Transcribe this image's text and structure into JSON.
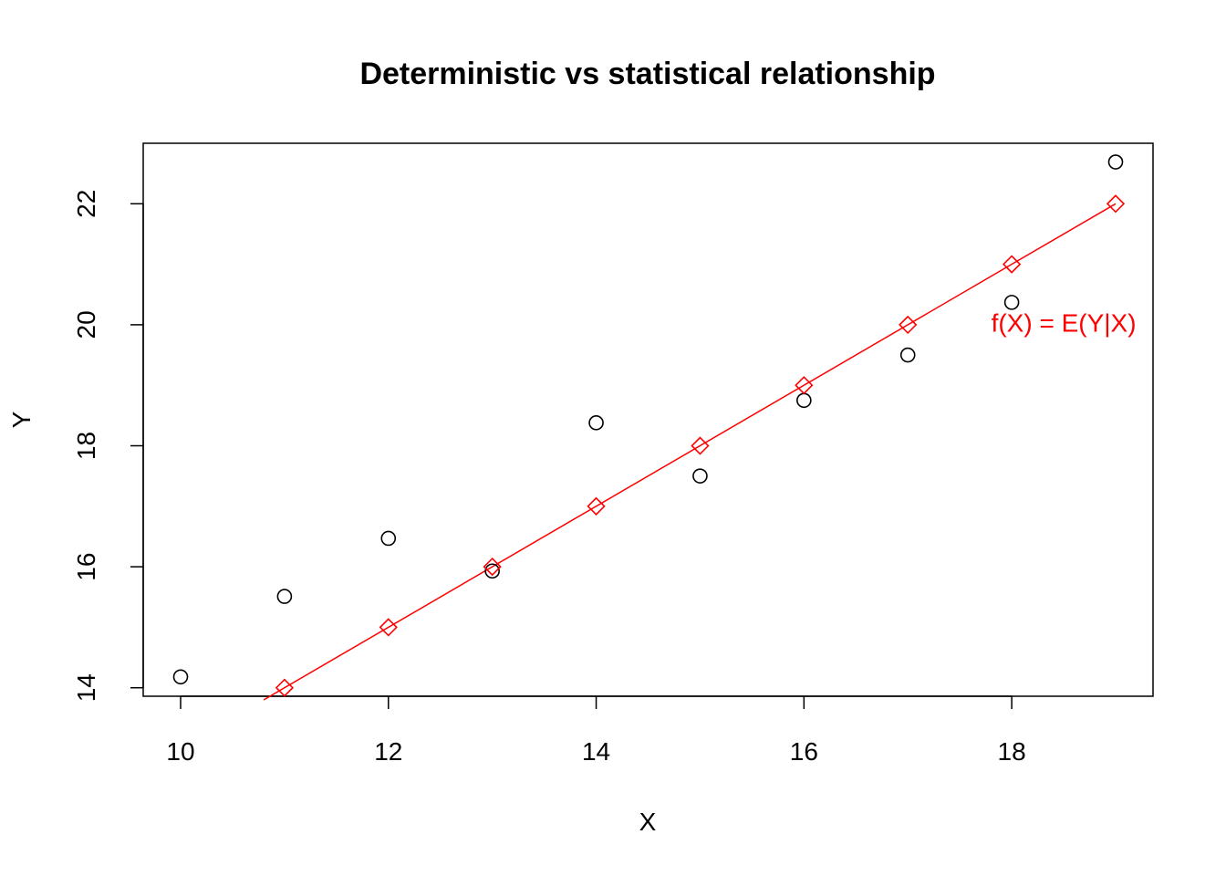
{
  "chart_data": {
    "type": "scatter",
    "title": "Deterministic vs statistical relationship",
    "xlabel": "X",
    "ylabel": "Y",
    "xlim": [
      9.64,
      19.36
    ],
    "ylim": [
      13.86,
      23.0
    ],
    "x_ticks": [
      10,
      12,
      14,
      16,
      18
    ],
    "y_ticks": [
      14,
      16,
      18,
      20,
      22
    ],
    "grid": false,
    "colors": {
      "observed": "#000000",
      "fitted": "#ff0000"
    },
    "observed_points": {
      "x": [
        10,
        11,
        12,
        13,
        14,
        15,
        16,
        17,
        18,
        19
      ],
      "y": [
        14.18,
        15.51,
        16.47,
        15.93,
        18.38,
        17.5,
        18.75,
        19.5,
        20.37,
        22.69
      ]
    },
    "fitted_points": {
      "x": [
        11,
        12,
        13,
        14,
        15,
        16,
        17,
        18,
        19
      ],
      "y": [
        14,
        15,
        16,
        17,
        18,
        19,
        20,
        21,
        22
      ]
    },
    "line": {
      "intercept": 3,
      "slope": 1,
      "x_range": [
        10.8,
        19
      ]
    },
    "annotation": {
      "text": "f(X) = E(Y|X)",
      "x": 18.5,
      "y": 20
    }
  }
}
